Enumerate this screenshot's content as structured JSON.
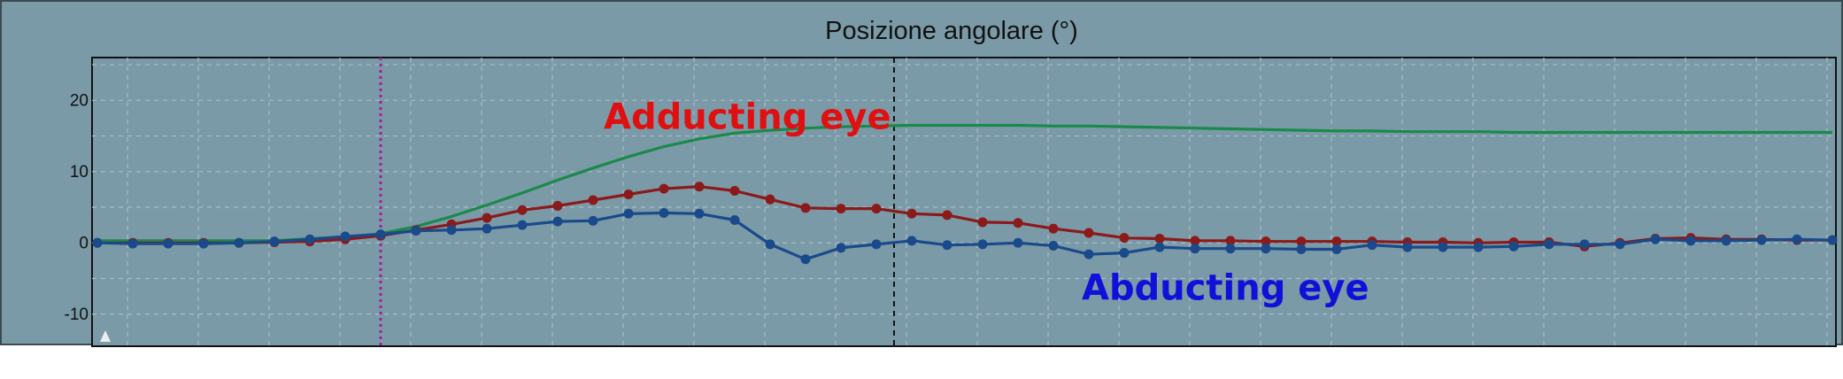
{
  "chart_data": {
    "type": "line",
    "title": "Posizione angolare (°)",
    "xlabel": "",
    "ylabel": "",
    "xlim": [
      0,
      49
    ],
    "ylim": [
      -14.5,
      26
    ],
    "yticks": [
      20,
      10,
      0,
      -10
    ],
    "grid": true,
    "x": [
      0,
      1,
      2,
      3,
      4,
      5,
      6,
      7,
      8,
      9,
      10,
      11,
      12,
      13,
      14,
      15,
      16,
      17,
      18,
      19,
      20,
      21,
      22,
      23,
      24,
      25,
      26,
      27,
      28,
      29,
      30,
      31,
      32,
      33,
      34,
      35,
      36,
      37,
      38,
      39,
      40,
      41,
      42,
      43,
      44,
      45,
      46,
      47,
      48,
      49
    ],
    "series": [
      {
        "color": "#1a8a4a",
        "markers": false,
        "values": [
          0.3,
          0.3,
          0.3,
          0.3,
          0.3,
          0.3,
          0.6,
          0.8,
          1.3,
          2.3,
          3.7,
          5.3,
          7.0,
          8.8,
          10.5,
          12.1,
          13.5,
          14.6,
          15.4,
          15.8,
          16.1,
          16.3,
          16.4,
          16.5,
          16.5,
          16.5,
          16.5,
          16.4,
          16.4,
          16.3,
          16.2,
          16.1,
          16.0,
          15.9,
          15.8,
          15.7,
          15.7,
          15.6,
          15.6,
          15.6,
          15.5,
          15.5,
          15.5,
          15.5,
          15.5,
          15.5,
          15.5,
          15.5,
          15.5,
          15.5
        ]
      },
      {
        "color": "#8b1a1a",
        "markers": true,
        "values": [
          0.0,
          0.0,
          0.0,
          0.0,
          0.0,
          0.1,
          0.2,
          0.5,
          1.0,
          1.8,
          2.6,
          3.5,
          4.6,
          5.2,
          6.0,
          6.8,
          7.6,
          7.9,
          7.3,
          6.1,
          4.9,
          4.8,
          4.8,
          4.1,
          3.9,
          2.9,
          2.8,
          2.0,
          1.4,
          0.7,
          0.6,
          0.3,
          0.3,
          0.2,
          0.2,
          0.2,
          0.2,
          0.1,
          0.1,
          0.0,
          0.1,
          0.1,
          -0.5,
          0.0,
          0.6,
          0.7,
          0.5,
          0.5,
          0.4,
          0.4
        ]
      },
      {
        "color": "#1a4a8a",
        "markers": true,
        "values": [
          0.0,
          -0.1,
          -0.1,
          -0.1,
          0.0,
          0.2,
          0.5,
          0.9,
          1.2,
          1.7,
          1.8,
          2.0,
          2.5,
          3.0,
          3.1,
          4.1,
          4.2,
          4.1,
          3.2,
          -0.2,
          -2.3,
          -0.7,
          -0.2,
          0.3,
          -0.3,
          -0.2,
          0.0,
          -0.4,
          -1.6,
          -1.4,
          -0.6,
          -0.8,
          -0.8,
          -0.8,
          -0.9,
          -0.9,
          -0.3,
          -0.6,
          -0.6,
          -0.6,
          -0.5,
          -0.2,
          -0.2,
          -0.2,
          0.5,
          0.3,
          0.3,
          0.4,
          0.5,
          0.4
        ]
      }
    ],
    "vlines": [
      {
        "x": 8,
        "style": "magenta-dotted"
      },
      {
        "x": 22.5,
        "style": "black-dashed"
      }
    ],
    "annotations": [
      {
        "text": "Adducting eye",
        "color": "#e01010",
        "x": 14.3,
        "y": 16
      },
      {
        "text": "Abducting eye",
        "color": "#1010d8",
        "x": 27.8,
        "y": -8
      }
    ]
  }
}
